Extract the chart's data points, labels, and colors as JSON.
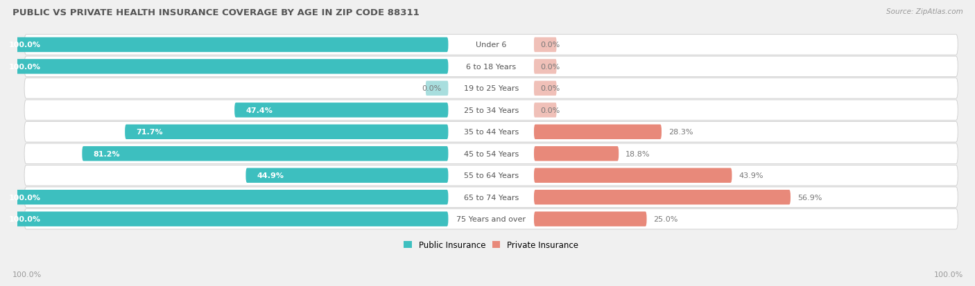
{
  "title": "PUBLIC VS PRIVATE HEALTH INSURANCE COVERAGE BY AGE IN ZIP CODE 88311",
  "source": "Source: ZipAtlas.com",
  "categories": [
    "Under 6",
    "6 to 18 Years",
    "19 to 25 Years",
    "25 to 34 Years",
    "35 to 44 Years",
    "45 to 54 Years",
    "55 to 64 Years",
    "65 to 74 Years",
    "75 Years and over"
  ],
  "public": [
    100.0,
    100.0,
    0.0,
    47.4,
    71.7,
    81.2,
    44.9,
    100.0,
    100.0
  ],
  "private": [
    0.0,
    0.0,
    0.0,
    0.0,
    28.3,
    18.8,
    43.9,
    56.9,
    25.0
  ],
  "public_color": "#3dbfbf",
  "private_color": "#e8897a",
  "public_light_color": "#a8dede",
  "bg_color": "#f0f0f0",
  "bar_bg_color": "#ffffff",
  "row_bg_even": "#f7f7f7",
  "title_color": "#555555",
  "label_dark": "#ffffff",
  "label_outside": "#777777",
  "center_label_color": "#555555",
  "axis_label_color": "#999999",
  "max_val": 100.0,
  "legend_public": "Public Insurance",
  "legend_private": "Private Insurance",
  "left_axis_label": "100.0%",
  "right_axis_label": "100.0%"
}
